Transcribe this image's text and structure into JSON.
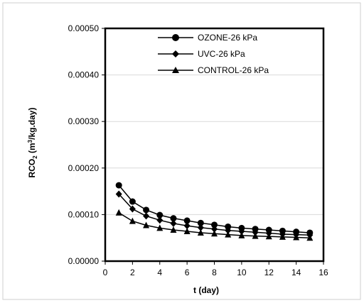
{
  "chart_data": {
    "type": "line",
    "title": "",
    "xlabel": "t (day)",
    "ylabel": {
      "prefix": "RCO",
      "sub": "2",
      "mid": " (m",
      "sup": "3",
      "suffix": "/kg.day)"
    },
    "xlim": [
      0,
      16
    ],
    "ylim": [
      0,
      0.0005
    ],
    "x_ticks": [
      "0",
      "2",
      "4",
      "6",
      "8",
      "10",
      "12",
      "14",
      "16"
    ],
    "y_ticks": [
      "0.00000",
      "0.00010",
      "0.00020",
      "0.00030",
      "0.00040",
      "0.00050"
    ],
    "grid": "horizontal",
    "legend_position": "top-right",
    "x": [
      1,
      2,
      3,
      4,
      5,
      6,
      7,
      8,
      9,
      10,
      11,
      12,
      13,
      14,
      15
    ],
    "series": [
      {
        "name": "OZONE-26 kPa",
        "marker": "circle",
        "values": [
          0.000163,
          0.000128,
          0.00011,
          9.9e-05,
          9.2e-05,
          8.7e-05,
          8.2e-05,
          7.8e-05,
          7.4e-05,
          7.1e-05,
          6.9e-05,
          6.7e-05,
          6.5e-05,
          6.3e-05,
          6.1e-05
        ]
      },
      {
        "name": "UVC-26 kPa",
        "marker": "diamond",
        "values": [
          0.000144,
          0.000112,
          9.7e-05,
          8.8e-05,
          8.1e-05,
          7.6e-05,
          7.2e-05,
          6.9e-05,
          6.6e-05,
          6.4e-05,
          6.2e-05,
          6e-05,
          5.8e-05,
          5.7e-05,
          5.6e-05
        ]
      },
      {
        "name": "CONTROL-26 kPa",
        "marker": "triangle",
        "values": [
          0.000104,
          8.6e-05,
          7.7e-05,
          7.1e-05,
          6.7e-05,
          6.4e-05,
          6.1e-05,
          5.9e-05,
          5.7e-05,
          5.5e-05,
          5.4e-05,
          5.3e-05,
          5.2e-05,
          5.1e-05,
          5e-05
        ]
      }
    ],
    "colors": {
      "line": "#000000",
      "grid": "#d9d9d9",
      "frame": "#000000"
    }
  }
}
